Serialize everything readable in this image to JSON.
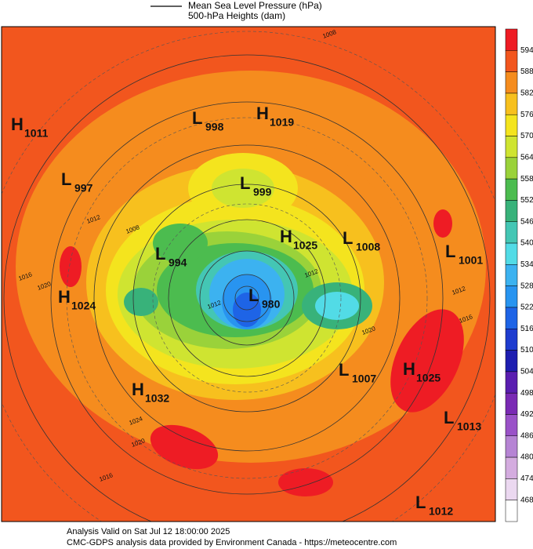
{
  "header": {
    "line1": "Mean Sea Level Pressure (hPa)",
    "line2": "500-hPa Heights (dam)"
  },
  "centers": [
    {
      "letter": "H",
      "value": "1011"
    },
    {
      "letter": "L",
      "value": "998"
    },
    {
      "letter": "H",
      "value": "1019"
    },
    {
      "letter": "L",
      "value": "997"
    },
    {
      "letter": "L",
      "value": "999"
    },
    {
      "letter": "H",
      "value": "1025"
    },
    {
      "letter": "L",
      "value": "1008"
    },
    {
      "letter": "L",
      "value": "994"
    },
    {
      "letter": "L",
      "value": "1001"
    },
    {
      "letter": "H",
      "value": "1024"
    },
    {
      "letter": "L",
      "value": "980"
    },
    {
      "letter": "L",
      "value": "1007"
    },
    {
      "letter": "H",
      "value": "1025"
    },
    {
      "letter": "H",
      "value": "1032"
    },
    {
      "letter": "L",
      "value": "1013"
    },
    {
      "letter": "L",
      "value": "1012"
    }
  ],
  "contour_labels": [
    "1008",
    "1012",
    "1008",
    "1016",
    "1020",
    "1012",
    "1012",
    "1016",
    "1012",
    "1020",
    "1024",
    "1020",
    "1016"
  ],
  "colorbar": {
    "labels": [
      "594",
      "588",
      "582",
      "576",
      "570",
      "564",
      "558",
      "552",
      "546",
      "540",
      "534",
      "528",
      "522",
      "516",
      "510",
      "504",
      "498",
      "492",
      "486",
      "480",
      "474",
      "468"
    ],
    "colors": [
      "#ee1c24",
      "#f2561e",
      "#f58c1e",
      "#f7c01e",
      "#f4e41e",
      "#cfe431",
      "#9ad23a",
      "#4cbc4f",
      "#38b27a",
      "#44c6b4",
      "#52dbe6",
      "#3cb2f0",
      "#2894f0",
      "#1e64e6",
      "#1e3ccf",
      "#1e1eb0",
      "#5a1eb0",
      "#7a2ab4",
      "#9a52c8",
      "#b684d4",
      "#d4acdf",
      "#ebd8f0",
      "#ffffff"
    ]
  },
  "footer": {
    "line1": "Analysis Valid on Sat Jul 12 18:00:00 2025",
    "line2": "CMC-GDPS analysis data provided by Environment Canada - https://meteocentre.com"
  }
}
